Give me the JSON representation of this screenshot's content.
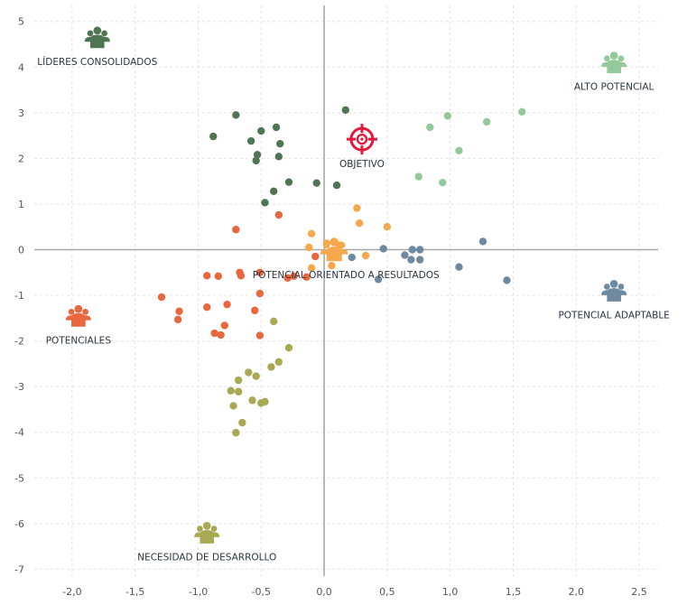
{
  "chart_data": {
    "type": "scatter",
    "xlim": [
      -2.3,
      2.65
    ],
    "ylim": [
      -7.15,
      5.35
    ],
    "xticks": [
      "-2,0",
      "-1,5",
      "-1,0",
      "-0,5",
      "0,0",
      "0,5",
      "1,0",
      "1,5",
      "2,0",
      "2,5"
    ],
    "xtick_values": [
      -2,
      -1.5,
      -1,
      -0.5,
      0,
      0.5,
      1,
      1.5,
      2,
      2.5
    ],
    "yticks": [
      "5",
      "4",
      "3",
      "2",
      "1",
      "0",
      "-1",
      "-2",
      "-3",
      "-4",
      "-5",
      "-6",
      "-7"
    ],
    "ytick_values": [
      5,
      4,
      3,
      2,
      1,
      0,
      -1,
      -2,
      -3,
      -4,
      -5,
      -6,
      -7
    ],
    "grid": true,
    "colors": {
      "lideres": "#4f7553",
      "alto": "#94c99b",
      "adaptable": "#6f8aa0",
      "orientado": "#f6a94c",
      "potenciales": "#e8673c",
      "necesidad": "#a9a854",
      "objetivo": "#e01b3c",
      "axis": "#a8a8a8",
      "grid": "#e4e4e4"
    },
    "groups": [
      {
        "key": "lideres",
        "label": "LÍDERES CONSOLIDADOS",
        "centroid": [
          -1.8,
          4.6
        ],
        "points": [
          [
            -0.7,
            2.95
          ],
          [
            -0.88,
            2.48
          ],
          [
            -0.58,
            2.38
          ],
          [
            -0.5,
            2.6
          ],
          [
            -0.38,
            2.68
          ],
          [
            -0.35,
            2.32
          ],
          [
            -0.53,
            2.08
          ],
          [
            -0.54,
            1.95
          ],
          [
            -0.36,
            2.04
          ],
          [
            -0.28,
            1.48
          ],
          [
            -0.4,
            1.28
          ],
          [
            -0.47,
            1.03
          ],
          [
            -0.06,
            1.46
          ],
          [
            0.1,
            1.41
          ],
          [
            0.17,
            3.06
          ]
        ]
      },
      {
        "key": "alto",
        "label": "ALTO POTENCIAL",
        "centroid": [
          2.3,
          4.05
        ],
        "points": [
          [
            0.84,
            2.68
          ],
          [
            0.98,
            2.93
          ],
          [
            1.29,
            2.8
          ],
          [
            1.57,
            3.02
          ],
          [
            1.07,
            2.17
          ],
          [
            0.75,
            1.6
          ],
          [
            0.94,
            1.47
          ]
        ]
      },
      {
        "key": "adaptable",
        "label": "POTENCIAL ADAPTABLE",
        "centroid": [
          2.3,
          -0.95
        ],
        "points": [
          [
            0.22,
            -0.17
          ],
          [
            0.47,
            0.02
          ],
          [
            0.64,
            -0.12
          ],
          [
            0.7,
            0.0
          ],
          [
            0.76,
            0.0
          ],
          [
            0.69,
            -0.22
          ],
          [
            0.76,
            -0.22
          ],
          [
            1.26,
            0.18
          ],
          [
            1.07,
            -0.38
          ],
          [
            1.45,
            -0.67
          ],
          [
            0.43,
            -0.65
          ]
        ]
      },
      {
        "key": "orientado",
        "label": "POTENCIAL ORIENTADO A RESULTADOS",
        "centroid": [
          0.08,
          -0.05
        ],
        "points": [
          [
            0.26,
            0.91
          ],
          [
            0.28,
            0.58
          ],
          [
            0.5,
            0.5
          ],
          [
            -0.1,
            0.35
          ],
          [
            -0.12,
            0.05
          ],
          [
            0.02,
            0.14
          ],
          [
            0.12,
            0.1
          ],
          [
            0.33,
            -0.13
          ],
          [
            -0.1,
            -0.4
          ],
          [
            0.06,
            -0.35
          ]
        ]
      },
      {
        "key": "potenciales",
        "label": "POTENCIALES",
        "centroid": [
          -1.95,
          -1.5
        ],
        "points": [
          [
            -0.7,
            0.44
          ],
          [
            -0.36,
            0.76
          ],
          [
            -0.93,
            -0.57
          ],
          [
            -0.84,
            -0.58
          ],
          [
            -0.67,
            -0.5
          ],
          [
            -0.66,
            -0.57
          ],
          [
            -0.51,
            -0.5
          ],
          [
            -0.29,
            -0.62
          ],
          [
            -0.24,
            -0.58
          ],
          [
            -0.51,
            -0.96
          ],
          [
            -1.29,
            -1.04
          ],
          [
            -0.93,
            -1.26
          ],
          [
            -0.77,
            -1.2
          ],
          [
            -0.55,
            -1.33
          ],
          [
            -1.15,
            -1.35
          ],
          [
            -1.16,
            -1.53
          ],
          [
            -0.79,
            -1.66
          ],
          [
            -0.87,
            -1.83
          ],
          [
            -0.82,
            -1.87
          ],
          [
            -0.51,
            -1.88
          ],
          [
            -0.07,
            -0.15
          ],
          [
            -0.14,
            -0.6
          ]
        ]
      },
      {
        "key": "necesidad",
        "label": "NECESIDAD DE DESARROLLO",
        "centroid": [
          -0.93,
          -6.25
        ],
        "points": [
          [
            -0.4,
            -1.57
          ],
          [
            -0.28,
            -2.15
          ],
          [
            -0.36,
            -2.46
          ],
          [
            -0.42,
            -2.57
          ],
          [
            -0.6,
            -2.69
          ],
          [
            -0.54,
            -2.77
          ],
          [
            -0.68,
            -2.86
          ],
          [
            -0.74,
            -3.09
          ],
          [
            -0.68,
            -3.11
          ],
          [
            -0.57,
            -3.3
          ],
          [
            -0.5,
            -3.36
          ],
          [
            -0.47,
            -3.33
          ],
          [
            -0.72,
            -3.42
          ],
          [
            -0.65,
            -3.79
          ],
          [
            -0.7,
            -4.01
          ]
        ]
      }
    ],
    "objetivo": {
      "label": "OBJETIVO",
      "x": 0.3,
      "y": 2.42
    }
  }
}
